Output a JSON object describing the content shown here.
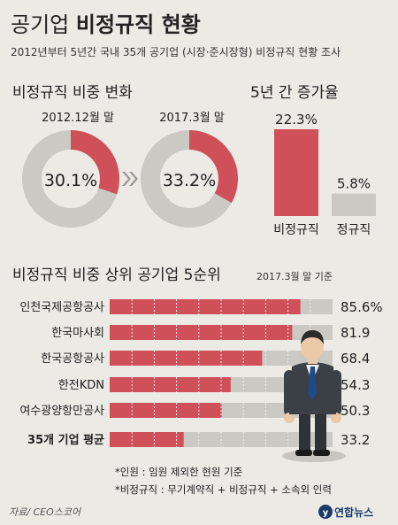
{
  "header": {
    "title_light": "공기업",
    "title_bold": "비정규직 현황",
    "subtitle": "2012년부터 5년간 국내 35개 공기업 (시장·준시장형) 비정규직 현황 조사"
  },
  "colors": {
    "accent": "#d0505a",
    "track": "#cbc9c4",
    "background": "#ebeae5",
    "navy": "#1a3a6a"
  },
  "chart_data": [
    {
      "type": "pie",
      "title": "비정규직 비중 변화",
      "charts": [
        {
          "label": "2012.12월 말",
          "value": 30.1,
          "display": "30.1%"
        },
        {
          "label": "2017.3월 말",
          "value": 33.2,
          "display": "33.2%"
        }
      ]
    },
    {
      "type": "bar",
      "title": "5년 간 증가율",
      "categories": [
        "비정규직",
        "정규직"
      ],
      "values": [
        22.3,
        5.8
      ],
      "display": [
        "22.3%",
        "5.8%"
      ]
    },
    {
      "type": "bar",
      "orientation": "horizontal",
      "title": "비정규직 비중 상위 공기업 5순위",
      "note": "2017.3월 말 기준",
      "categories": [
        "인천국제공항공사",
        "한국마사회",
        "한국공항공사",
        "한전KDN",
        "여수광양항만공사",
        "35개 기업 평균"
      ],
      "values": [
        85.6,
        81.9,
        68.4,
        54.3,
        50.3,
        33.2
      ],
      "display": [
        "85.6%",
        "81.9",
        "68.4",
        "54.3",
        "50.3",
        "33.2"
      ],
      "xlim": [
        0,
        100
      ]
    }
  ],
  "footnotes": [
    "*인원 : 임원 제외한 현원 기준",
    "*비정규직 : 무기계약직 + 비정규직 + 소속외 인력"
  ],
  "source": "자료/ CEO스코어",
  "logo": "연합뉴스"
}
